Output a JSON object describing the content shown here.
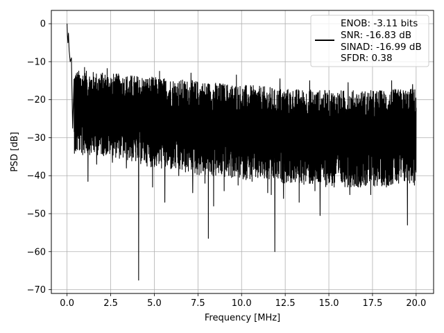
{
  "chart_data": {
    "type": "line",
    "title": "",
    "xlabel": "Frequency [MHz]",
    "ylabel": "PSD [dB]",
    "xlim": [
      -0.9,
      21.0
    ],
    "ylim": [
      -71.0,
      3.5
    ],
    "xticks": [
      0.0,
      2.5,
      5.0,
      7.5,
      10.0,
      12.5,
      15.0,
      17.5,
      20.0
    ],
    "xtick_labels": [
      "0.0",
      "2.5",
      "5.0",
      "7.5",
      "10.0",
      "12.5",
      "15.0",
      "17.5",
      "20.0"
    ],
    "yticks": [
      0,
      -10,
      -20,
      -30,
      -40,
      -50,
      -60,
      -70
    ],
    "ytick_labels": [
      "0",
      "−10",
      "−20",
      "−30",
      "−40",
      "−50",
      "−60",
      "−70"
    ],
    "grid": true,
    "legend_position": "top-right",
    "legend_lines": [
      "ENOB: -3.11 bits",
      "SNR: -16.83 dB",
      "SINAD: -16.99 dB",
      "SFDR: 0.38"
    ],
    "series": [
      {
        "color": "#000000",
        "noise_band": {
          "x": [
            0.0,
            2.5,
            5.0,
            7.5,
            10.0,
            12.5,
            15.0,
            17.5,
            20.0
          ],
          "upper": [
            -12.0,
            -13.0,
            -14.0,
            -15.0,
            -16.0,
            -17.0,
            -17.5,
            -17.5,
            -17.0
          ],
          "lower": [
            -34.0,
            -35.0,
            -38.0,
            -40.0,
            -41.0,
            -42.0,
            -43.0,
            -43.0,
            -42.0
          ]
        },
        "low_freq_peak": [
          [
            0.0,
            0.0
          ],
          [
            0.02,
            -3.0
          ],
          [
            0.05,
            -5.0
          ],
          [
            0.08,
            -2.5
          ],
          [
            0.12,
            -7.0
          ],
          [
            0.18,
            -10.0
          ],
          [
            0.25,
            -9.0
          ],
          [
            0.32,
            -13.0
          ],
          [
            0.4,
            -15.0
          ]
        ],
        "dips": [
          [
            0.3,
            -27.5
          ],
          [
            0.5,
            -33.5
          ],
          [
            0.9,
            -34.5
          ],
          [
            1.2,
            -41.5
          ],
          [
            1.7,
            -37.0
          ],
          [
            2.6,
            -36.5
          ],
          [
            3.4,
            -38.0
          ],
          [
            4.1,
            -67.5
          ],
          [
            4.9,
            -43.0
          ],
          [
            5.6,
            -47.0
          ],
          [
            6.4,
            -40.0
          ],
          [
            7.2,
            -44.5
          ],
          [
            7.9,
            -42.0
          ],
          [
            8.1,
            -56.5
          ],
          [
            8.4,
            -48.0
          ],
          [
            9.0,
            -44.0
          ],
          [
            9.8,
            -42.5
          ],
          [
            10.6,
            -41.5
          ],
          [
            11.5,
            -44.5
          ],
          [
            11.7,
            -45.0
          ],
          [
            11.9,
            -60.0
          ],
          [
            12.4,
            -46.0
          ],
          [
            13.3,
            -47.0
          ],
          [
            14.2,
            -44.0
          ],
          [
            14.5,
            -50.5
          ],
          [
            15.3,
            -43.0
          ],
          [
            16.2,
            -45.0
          ],
          [
            16.7,
            -43.0
          ],
          [
            17.4,
            -45.0
          ],
          [
            18.3,
            -43.0
          ],
          [
            19.0,
            -42.0
          ],
          [
            19.5,
            -53.0
          ],
          [
            19.9,
            -42.5
          ]
        ],
        "spikes": [
          [
            1.0,
            -11.5
          ],
          [
            2.3,
            -11.8
          ],
          [
            5.3,
            -12.5
          ],
          [
            7.1,
            -13.0
          ],
          [
            9.7,
            -13.5
          ],
          [
            12.2,
            -14.5
          ],
          [
            13.9,
            -15.0
          ],
          [
            16.1,
            -15.5
          ],
          [
            18.6,
            -15.0
          ],
          [
            19.8,
            -16.0
          ]
        ]
      }
    ]
  }
}
